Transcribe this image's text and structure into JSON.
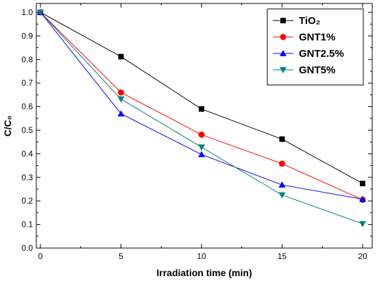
{
  "chart_data": {
    "type": "line",
    "title": "",
    "xlabel": "Irradiation time (min)",
    "ylabel": "C/C₀",
    "xlim": [
      0,
      20
    ],
    "ylim": [
      0.0,
      1.0
    ],
    "xticks": [
      0,
      5,
      10,
      15,
      20
    ],
    "yticks": [
      0.0,
      0.1,
      0.2,
      0.3,
      0.4,
      0.5,
      0.6,
      0.7,
      0.8,
      0.9,
      1.0
    ],
    "x": [
      0,
      5,
      10,
      15,
      20
    ],
    "grid": false,
    "legend_position": "top-right",
    "series": [
      {
        "name": "TiO₂",
        "color": "#000000",
        "marker": "square",
        "values": [
          1.0,
          0.812,
          0.59,
          0.462,
          0.274
        ]
      },
      {
        "name": "GNT1%",
        "color": "#ff0000",
        "marker": "circle",
        "values": [
          1.0,
          0.66,
          0.481,
          0.358,
          0.205
        ]
      },
      {
        "name": "GNT2.5%",
        "color": "#0000ff",
        "marker": "triangle-up",
        "values": [
          1.0,
          0.57,
          0.397,
          0.268,
          0.207
        ]
      },
      {
        "name": "GNT5%",
        "color": "#008080",
        "marker": "triangle-down",
        "values": [
          1.0,
          0.632,
          0.428,
          0.225,
          0.103
        ]
      }
    ]
  }
}
